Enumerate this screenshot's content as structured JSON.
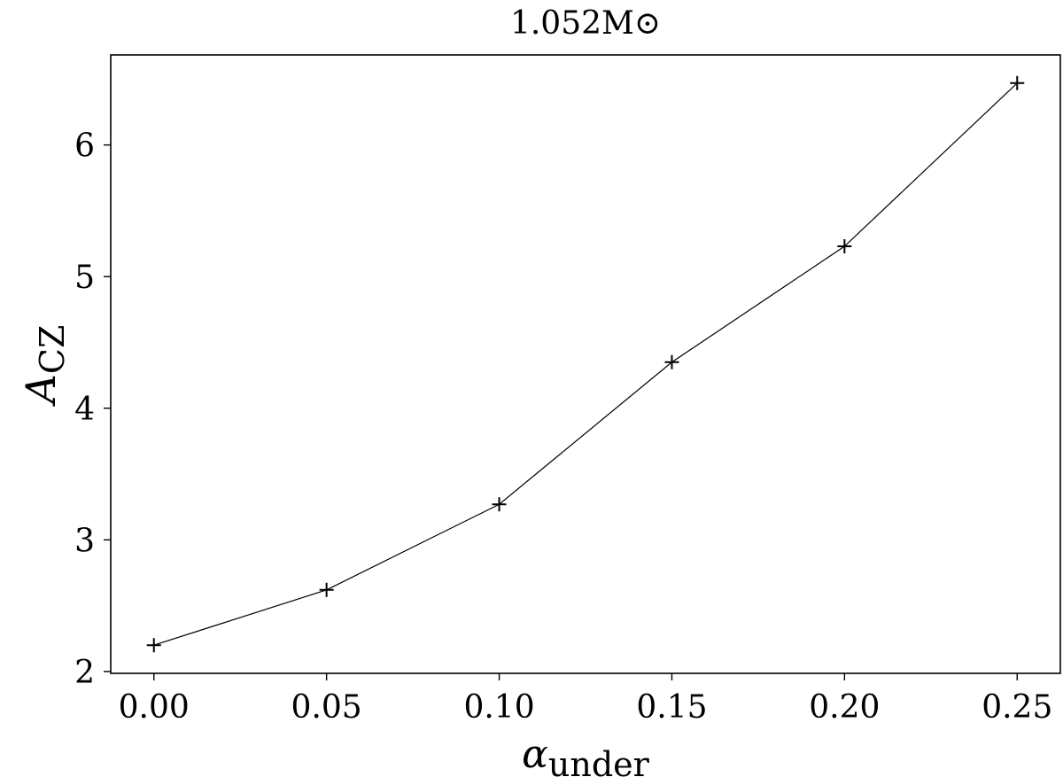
{
  "chart_data": {
    "type": "line",
    "title": "1.052M⊙",
    "xlabel": {
      "main": "α",
      "sub": "under"
    },
    "ylabel": {
      "main": "A",
      "sub": "CZ"
    },
    "x": [
      0,
      0.05,
      0.1,
      0.15,
      0.2,
      0.25
    ],
    "series": [
      {
        "color": "#000000",
        "values": [
          2.2,
          2.62,
          3.27,
          4.35,
          5.23,
          6.47
        ]
      }
    ],
    "marker": "+",
    "xlim": [
      -0.0125,
      0.2625
    ],
    "ylim": [
      1.986,
      6.684
    ],
    "xticks": [
      {
        "value": 0,
        "label": "0.00"
      },
      {
        "value": 0.05,
        "label": "0.05"
      },
      {
        "value": 0.1,
        "label": "0.10"
      },
      {
        "value": 0.15,
        "label": "0.15"
      },
      {
        "value": 0.2,
        "label": "0.20"
      },
      {
        "value": 0.25,
        "label": "0.25"
      }
    ],
    "yticks": [
      2,
      3,
      4,
      5,
      6
    ],
    "grid": false
  }
}
